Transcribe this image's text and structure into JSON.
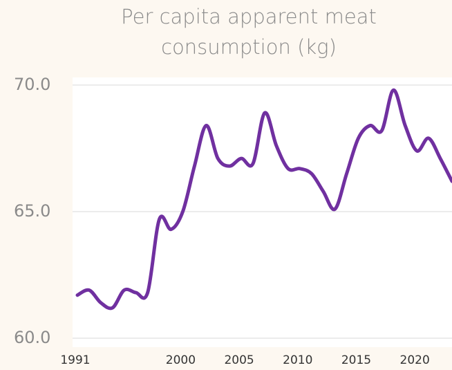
{
  "chart_data": {
    "type": "line",
    "title": "Per capita apparent meat consumption (kg)",
    "x": [
      1991,
      1992,
      1993,
      1994,
      1995,
      1996,
      1997,
      1998,
      1999,
      2000,
      2001,
      2002,
      2003,
      2004,
      2005,
      2006,
      2007,
      2008,
      2009,
      2010,
      2011,
      2012,
      2013,
      2014,
      2015,
      2016,
      2017,
      2018,
      2019,
      2020,
      2021,
      2022,
      2023
    ],
    "series": [
      {
        "name": "Per capita apparent meat consumption",
        "color": "#7030a0",
        "values": [
          61.7,
          61.9,
          61.4,
          61.2,
          61.9,
          61.8,
          61.8,
          64.7,
          64.3,
          65.0,
          66.8,
          68.4,
          67.1,
          66.8,
          67.1,
          66.9,
          68.9,
          67.6,
          66.7,
          66.7,
          66.5,
          65.8,
          65.1,
          66.5,
          67.9,
          68.4,
          68.2,
          69.8,
          68.4,
          67.4,
          67.9,
          67.1,
          66.2
        ]
      }
    ],
    "xlim": [
      1991,
      2023
    ],
    "xticks": [
      1991,
      2000,
      2005,
      2010,
      2015,
      2020
    ],
    "ylim": [
      60,
      70
    ],
    "yticks": [
      {
        "value": 60,
        "label": "60.0"
      },
      {
        "value": 65,
        "label": "65.0"
      },
      {
        "value": 70,
        "label": "70.0"
      }
    ],
    "grid": true
  }
}
